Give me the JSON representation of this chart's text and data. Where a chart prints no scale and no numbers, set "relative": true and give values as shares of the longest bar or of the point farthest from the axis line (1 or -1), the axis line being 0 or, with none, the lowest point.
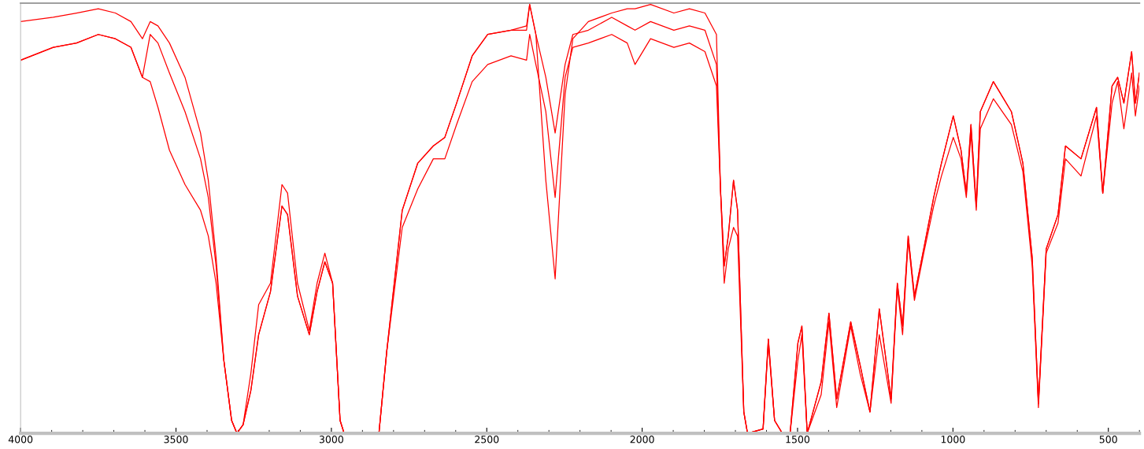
{
  "chart_data": {
    "type": "line",
    "relative": true,
    "xlim": [
      4000,
      400
    ],
    "xticks": [
      4000,
      3500,
      3000,
      2500,
      2000,
      1500,
      1000,
      500
    ],
    "grid": false,
    "legend": false,
    "marker": "none",
    "line_style": "solid",
    "x": [
      4000,
      3895,
      3820,
      3750,
      3695,
      3645,
      3608,
      3583,
      3558,
      3521,
      3471,
      3421,
      3396,
      3371,
      3346,
      3321,
      3304,
      3284,
      3259,
      3234,
      3196,
      3159,
      3141,
      3109,
      3071,
      3046,
      3021,
      2996,
      2972,
      2959,
      2847,
      2822,
      2772,
      2722,
      2672,
      2635,
      2597,
      2547,
      2497,
      2422,
      2372,
      2362,
      2342,
      2310,
      2280,
      2248,
      2223,
      2173,
      2098,
      2048,
      2023,
      1973,
      1898,
      1848,
      1798,
      1761,
      1748,
      1736,
      1723,
      1706,
      1693,
      1673,
      1661,
      1611,
      1594,
      1574,
      1549,
      1524,
      1499,
      1486,
      1469,
      1424,
      1399,
      1374,
      1329,
      1299,
      1267,
      1237,
      1199,
      1179,
      1162,
      1144,
      1124,
      1094,
      1062,
      1037,
      999,
      974,
      957,
      942,
      925,
      912,
      870,
      812,
      775,
      745,
      725,
      700,
      662,
      638,
      588,
      538,
      518,
      488,
      470,
      450,
      425,
      413,
      400
    ],
    "series": [
      {
        "color": "#ff0000",
        "values": [
          0.96,
          0.97,
          0.98,
          0.99,
          0.98,
          0.96,
          0.92,
          0.96,
          0.95,
          0.91,
          0.83,
          0.7,
          0.59,
          0.41,
          0.17,
          0.03,
          0.0,
          0.02,
          0.14,
          0.3,
          0.35,
          0.58,
          0.56,
          0.35,
          0.24,
          0.35,
          0.42,
          0.35,
          0.03,
          0.0,
          0.0,
          0.19,
          0.52,
          0.63,
          0.67,
          0.69,
          0.77,
          0.88,
          0.93,
          0.94,
          0.94,
          1.0,
          0.93,
          0.83,
          0.7,
          0.86,
          0.93,
          0.94,
          0.97,
          0.95,
          0.94,
          0.96,
          0.94,
          0.95,
          0.94,
          0.86,
          0.57,
          0.39,
          0.46,
          0.59,
          0.52,
          0.05,
          0.0,
          0.01,
          0.22,
          0.03,
          0.0,
          0.0,
          0.21,
          0.25,
          0.0,
          0.12,
          0.28,
          0.08,
          0.26,
          0.16,
          0.05,
          0.29,
          0.08,
          0.35,
          0.25,
          0.46,
          0.32,
          0.43,
          0.55,
          0.63,
          0.74,
          0.66,
          0.56,
          0.72,
          0.53,
          0.75,
          0.82,
          0.75,
          0.63,
          0.41,
          0.07,
          0.43,
          0.51,
          0.67,
          0.64,
          0.76,
          0.56,
          0.81,
          0.83,
          0.77,
          0.89,
          0.77,
          0.84
        ]
      },
      {
        "color": "#ff0000",
        "values": [
          0.87,
          0.9,
          0.91,
          0.93,
          0.92,
          0.9,
          0.83,
          0.93,
          0.91,
          0.84,
          0.75,
          0.64,
          0.55,
          0.39,
          0.17,
          0.03,
          0.0,
          0.02,
          0.1,
          0.23,
          0.33,
          0.53,
          0.51,
          0.32,
          0.23,
          0.33,
          0.4,
          0.35,
          0.03,
          0.0,
          0.0,
          0.19,
          0.48,
          0.57,
          0.64,
          0.64,
          0.72,
          0.82,
          0.86,
          0.88,
          0.87,
          0.93,
          0.86,
          0.75,
          0.55,
          0.83,
          0.9,
          0.91,
          0.93,
          0.91,
          0.86,
          0.92,
          0.9,
          0.91,
          0.89,
          0.81,
          0.57,
          0.35,
          0.43,
          0.48,
          0.46,
          0.05,
          0.0,
          0.01,
          0.21,
          0.03,
          0.0,
          0.0,
          0.17,
          0.23,
          0.0,
          0.09,
          0.26,
          0.06,
          0.25,
          0.14,
          0.05,
          0.23,
          0.07,
          0.34,
          0.23,
          0.45,
          0.31,
          0.42,
          0.53,
          0.6,
          0.69,
          0.64,
          0.55,
          0.7,
          0.52,
          0.71,
          0.78,
          0.72,
          0.61,
          0.39,
          0.06,
          0.42,
          0.49,
          0.64,
          0.6,
          0.74,
          0.56,
          0.77,
          0.82,
          0.71,
          0.84,
          0.74,
          0.81
        ]
      },
      {
        "color": "#ff0000",
        "values": [
          0.87,
          0.9,
          0.91,
          0.93,
          0.92,
          0.9,
          0.83,
          0.82,
          0.76,
          0.66,
          0.58,
          0.52,
          0.46,
          0.35,
          0.17,
          0.03,
          0.0,
          0.02,
          0.1,
          0.23,
          0.33,
          0.53,
          0.51,
          0.32,
          0.23,
          0.33,
          0.4,
          0.35,
          0.03,
          0.0,
          0.0,
          0.19,
          0.52,
          0.63,
          0.67,
          0.69,
          0.77,
          0.88,
          0.93,
          0.94,
          0.95,
          1.0,
          0.93,
          0.59,
          0.36,
          0.79,
          0.92,
          0.96,
          0.98,
          0.99,
          0.99,
          1.0,
          0.98,
          0.99,
          0.98,
          0.93,
          0.57,
          0.39,
          0.46,
          0.59,
          0.52,
          0.05,
          0.0,
          0.01,
          0.22,
          0.03,
          0.0,
          0.0,
          0.21,
          0.25,
          0.0,
          0.12,
          0.28,
          0.08,
          0.26,
          0.16,
          0.05,
          0.29,
          0.08,
          0.35,
          0.25,
          0.46,
          0.32,
          0.43,
          0.55,
          0.63,
          0.74,
          0.66,
          0.56,
          0.72,
          0.53,
          0.75,
          0.82,
          0.75,
          0.63,
          0.41,
          0.07,
          0.43,
          0.51,
          0.67,
          0.64,
          0.76,
          0.56,
          0.81,
          0.83,
          0.77,
          0.89,
          0.77,
          0.84
        ]
      }
    ]
  }
}
